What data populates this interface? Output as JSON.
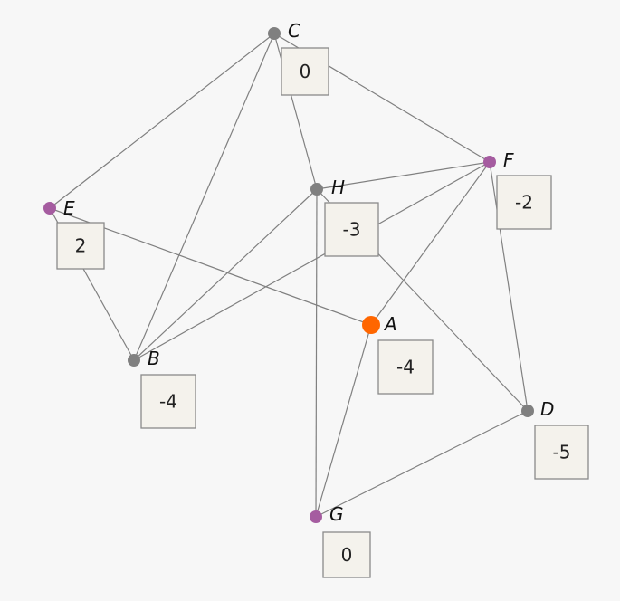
{
  "colors": {
    "background": "#f7f7f7",
    "edge": "#808080",
    "node_default": "#808080",
    "node_purple": "#a55ca0",
    "node_selected": "#ff6600",
    "box_fill": "#f4f2ec",
    "box_stroke": "#8a8a8a"
  },
  "nodes": [
    {
      "id": "A",
      "name": "A",
      "value": "-4",
      "color": "node_selected"
    },
    {
      "id": "B",
      "name": "B",
      "value": "-4",
      "color": "node_default"
    },
    {
      "id": "C",
      "name": "C",
      "value": "0",
      "color": "node_default"
    },
    {
      "id": "D",
      "name": "D",
      "value": "-5",
      "color": "node_default"
    },
    {
      "id": "E",
      "name": "E",
      "value": "2",
      "color": "node_purple"
    },
    {
      "id": "F",
      "name": "F",
      "value": "-2",
      "color": "node_purple"
    },
    {
      "id": "G",
      "name": "G",
      "value": "0",
      "color": "node_purple"
    },
    {
      "id": "H",
      "name": "H",
      "value": "-3",
      "color": "node_default"
    }
  ],
  "edges": [
    [
      "C",
      "E"
    ],
    [
      "C",
      "B"
    ],
    [
      "C",
      "H"
    ],
    [
      "C",
      "F"
    ],
    [
      "E",
      "A"
    ],
    [
      "E",
      "B"
    ],
    [
      "H",
      "F"
    ],
    [
      "H",
      "B"
    ],
    [
      "H",
      "G"
    ],
    [
      "H",
      "D"
    ],
    [
      "F",
      "B"
    ],
    [
      "F",
      "A"
    ],
    [
      "F",
      "D"
    ],
    [
      "A",
      "G"
    ],
    [
      "D",
      "G"
    ]
  ]
}
